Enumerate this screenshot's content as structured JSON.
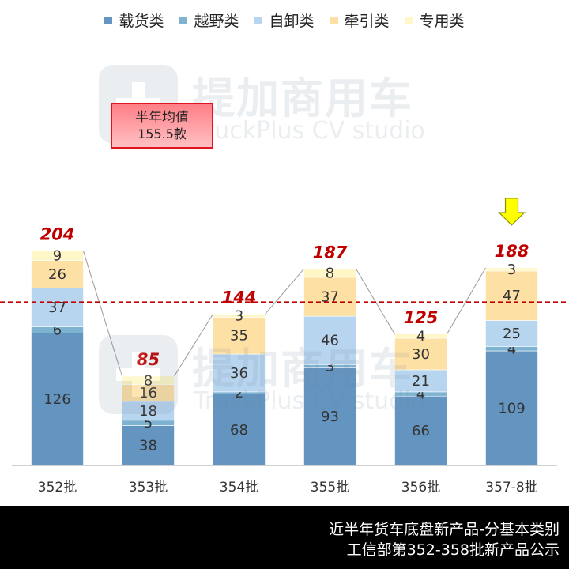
{
  "chart_data": {
    "type": "bar",
    "stacked": true,
    "categories": [
      "352批",
      "353批",
      "354批",
      "355批",
      "356批",
      "357-8批"
    ],
    "series": [
      {
        "name": "载货类",
        "color": "#6495c1",
        "values": [
          126,
          38,
          68,
          93,
          66,
          109
        ]
      },
      {
        "name": "越野类",
        "color": "#7db3d1",
        "values": [
          6,
          5,
          2,
          3,
          4,
          4
        ]
      },
      {
        "name": "自卸类",
        "color": "#b8d5f0",
        "values": [
          37,
          18,
          36,
          46,
          21,
          25
        ]
      },
      {
        "name": "牵引类",
        "color": "#fde0a4",
        "values": [
          26,
          16,
          35,
          37,
          30,
          47
        ]
      },
      {
        "name": "专用类",
        "color": "#fff7c8",
        "values": [
          9,
          8,
          3,
          8,
          4,
          3
        ]
      }
    ],
    "totals": [
      204,
      85,
      144,
      187,
      125,
      188
    ],
    "average": 155.5,
    "average_label": {
      "line1": "半年均值",
      "line2": "155.5款"
    },
    "ylim": [
      0,
      215
    ],
    "legend_position": "top",
    "grid": false,
    "highlight_category": "357-8批",
    "highlight_marker": "down-arrow-icon",
    "total_label_color": "#c00000",
    "average_line_color": "#c00000"
  },
  "watermark": {
    "cn": "提加商用车",
    "en": "TruckPlus CV studio"
  },
  "footer": {
    "line1": "近半年货车底盘新产品-分基本类别",
    "line2": "工信部第352-358批新产品公示"
  }
}
